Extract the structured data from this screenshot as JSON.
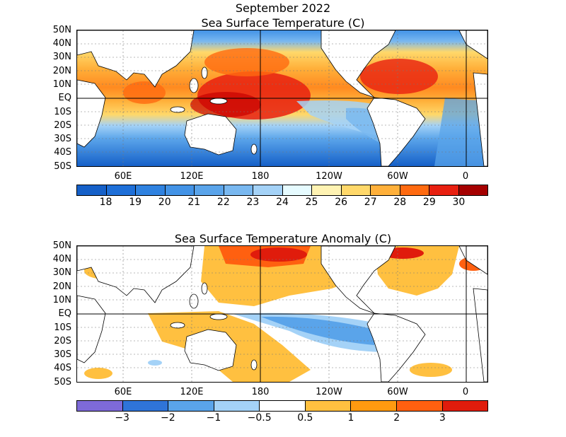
{
  "header": {
    "title": "September 2022"
  },
  "panels": [
    {
      "title": "Sea Surface Temperature (C)",
      "lat_labels": [
        "50N",
        "40N",
        "30N",
        "20N",
        "10N",
        "EQ",
        "10S",
        "20S",
        "30S",
        "40S",
        "50S"
      ],
      "lon_labels": [
        "60E",
        "120E",
        "180",
        "120W",
        "60W",
        "0"
      ],
      "colorbar": {
        "labels": [
          "18",
          "19",
          "20",
          "21",
          "22",
          "23",
          "24",
          "25",
          "26",
          "27",
          "28",
          "29",
          "30"
        ],
        "colors": [
          "#1560c8",
          "#1e6fd8",
          "#2f82e0",
          "#4393e6",
          "#5aa4ea",
          "#79b8f0",
          "#a4d2f7",
          "#e6fbff",
          "#fff3b3",
          "#ffd86a",
          "#ffb03a",
          "#ff6a10",
          "#e82010",
          "#a50000"
        ]
      }
    },
    {
      "title": "Sea Surface Temperature Anomaly (C)",
      "lat_labels": [
        "50N",
        "40N",
        "30N",
        "20N",
        "10N",
        "EQ",
        "10S",
        "20S",
        "30S",
        "40S",
        "50S"
      ],
      "lon_labels": [
        "60E",
        "120E",
        "180",
        "120W",
        "60W",
        "0"
      ],
      "colorbar": {
        "labels": [
          "−3",
          "−2",
          "−1",
          "−0.5",
          "0.5",
          "1",
          "2",
          "3"
        ],
        "colors": [
          "#7e6ad8",
          "#2f74d8",
          "#5aa4ea",
          "#a4d2f7",
          "#ffffff",
          "#ffc040",
          "#ff9a10",
          "#ff6010",
          "#e01c0c"
        ]
      }
    }
  ]
}
